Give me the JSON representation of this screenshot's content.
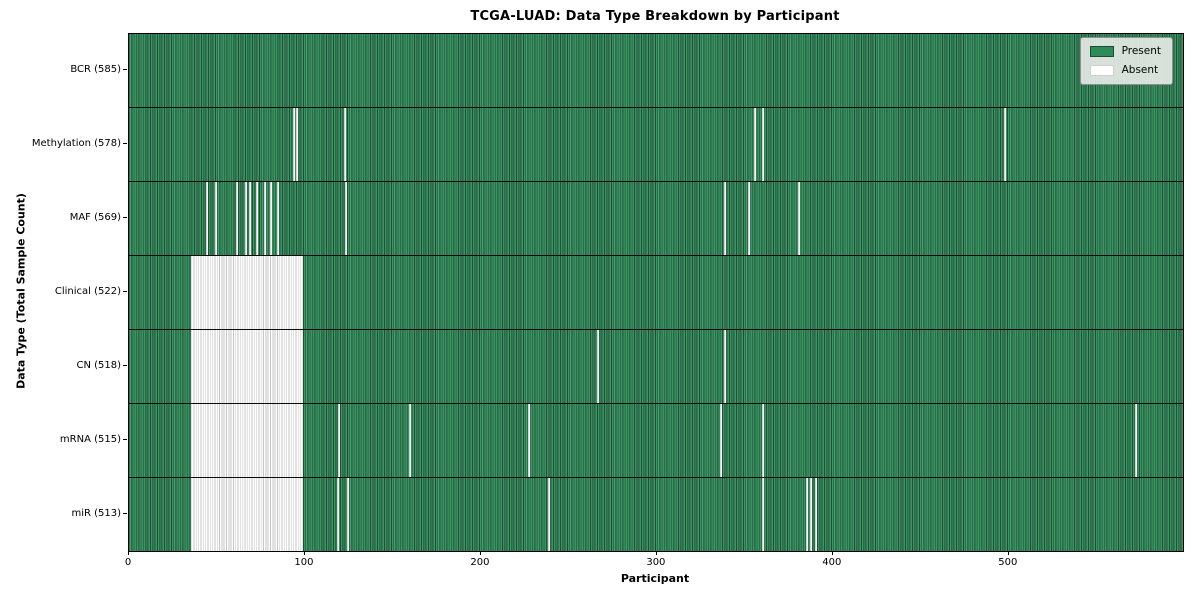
{
  "chart_data": {
    "type": "heatmap",
    "title": "TCGA-LUAD: Data Type Breakdown by Participant",
    "xlabel": "Participant",
    "ylabel": "Data Type (Total Sample Count)",
    "x_ticks": [
      0,
      100,
      200,
      300,
      400,
      500
    ],
    "x_max": 599,
    "grid": false,
    "legend_position": "upper right",
    "legend_items": [
      {
        "label": "Present",
        "color": "#2e8b57"
      },
      {
        "label": "Absent",
        "color": "#ffffff"
      }
    ],
    "rows": [
      {
        "label": "BCR (585)",
        "present_count": 585,
        "absent_singles": [],
        "absent_ranges": []
      },
      {
        "label": "Methylation (578)",
        "present_count": 578,
        "absent_singles": [
          93,
          95,
          122,
          355,
          360,
          497
        ],
        "absent_ranges": []
      },
      {
        "label": "MAF (569)",
        "present_count": 569,
        "absent_singles": [
          44,
          49,
          61,
          66,
          68,
          72,
          77,
          80,
          84,
          123,
          338,
          352,
          380
        ],
        "absent_ranges": []
      },
      {
        "label": "Clinical (522)",
        "present_count": 522,
        "absent_singles": [],
        "absent_ranges": [
          [
            35,
            98
          ]
        ]
      },
      {
        "label": "CN (518)",
        "present_count": 518,
        "absent_singles": [
          266,
          338
        ],
        "absent_ranges": [
          [
            35,
            98
          ]
        ]
      },
      {
        "label": "mRNA (515)",
        "present_count": 515,
        "absent_singles": [
          119,
          159,
          227,
          336,
          360,
          572
        ],
        "absent_ranges": [
          [
            35,
            98
          ]
        ]
      },
      {
        "label": "miR (513)",
        "present_count": 513,
        "absent_singles": [
          118,
          124,
          238,
          360,
          385,
          387,
          390
        ],
        "absent_ranges": [
          [
            35,
            98
          ]
        ]
      }
    ]
  }
}
